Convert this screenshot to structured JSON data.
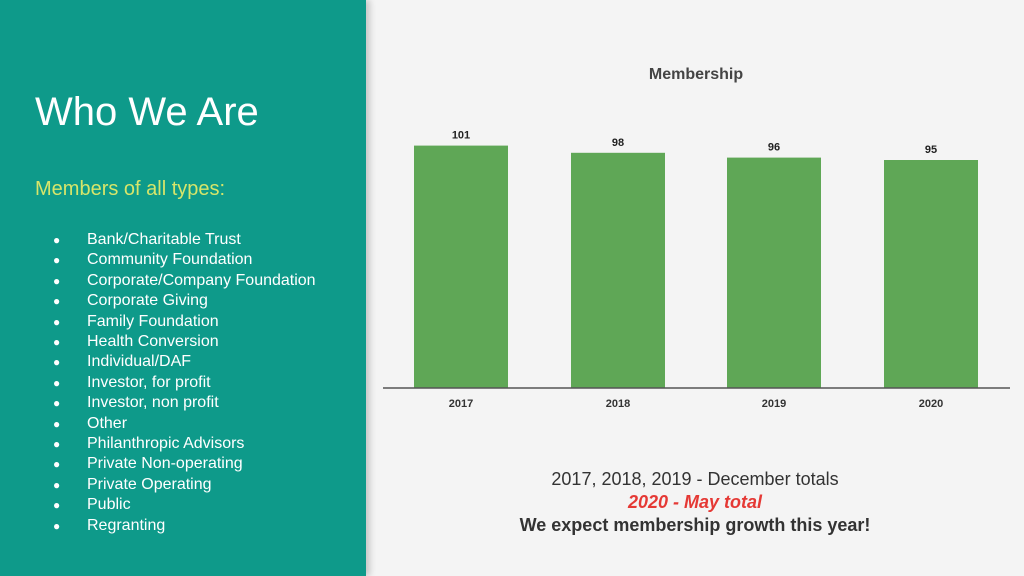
{
  "slide": {
    "title": "Who We Are",
    "subtitle": "Members of all types:",
    "bullet_glyph": "●",
    "member_types": [
      "Bank/Charitable Trust",
      "Community Foundation",
      "Corporate/Company Foundation",
      "Corporate Giving",
      "Family Foundation",
      "Health Conversion",
      "Individual/DAF",
      "Investor, for profit",
      "Investor, non profit",
      "Other",
      "Philanthropic Advisors",
      "Private Non-operating",
      "Private Operating",
      "Public",
      "Regranting"
    ],
    "notes": {
      "line1": "2017, 2018, 2019 - December totals",
      "line2": "2020 - May total",
      "line3": "We expect membership growth this year!"
    }
  },
  "colors": {
    "panel": "#0e9a8a",
    "subtitle": "#d6e56a",
    "bar": "#5fa756",
    "highlight": "#e53935"
  },
  "chart_data": {
    "type": "bar",
    "title": "Membership",
    "categories": [
      "2017",
      "2018",
      "2019",
      "2020"
    ],
    "values": [
      101,
      98,
      96,
      95
    ],
    "ylim": [
      0,
      110
    ],
    "xlabel": "",
    "ylabel": "",
    "grid": false,
    "legend": "none",
    "data_labels": true
  }
}
